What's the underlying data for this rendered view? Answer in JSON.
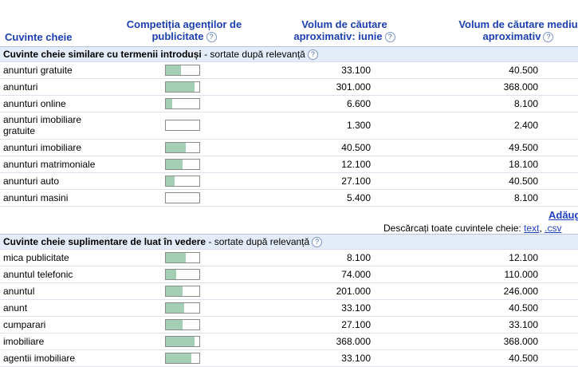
{
  "header": {
    "col_keywords": "Cuvinte cheie",
    "col_competition_l1": "Competiția agenților de",
    "col_competition_l2": "publicitate",
    "col_volume_l1": "Volum de căutare",
    "col_volume_l2": "aproximativ: iunie",
    "col_avg_l1": "Volum de căutare mediu",
    "col_avg_l2": "aproximativ",
    "help_glyph": "?"
  },
  "section1": {
    "title": "Cuvinte cheie similare cu termenii introduși",
    "subtitle": " - sortate după relevanță",
    "rows": [
      {
        "keyword": "anunturi gratuite",
        "competition": 0.45,
        "volume": "33.100",
        "avg": "40.500"
      },
      {
        "keyword": "anunturi",
        "competition": 0.85,
        "volume": "301.000",
        "avg": "368.000"
      },
      {
        "keyword": "anunturi online",
        "competition": 0.2,
        "volume": "6.600",
        "avg": "8.100"
      },
      {
        "keyword": "anunturi imobiliare gratuite",
        "competition": 0.0,
        "volume": "1.300",
        "avg": "2.400"
      },
      {
        "keyword": "anunturi imobiliare",
        "competition": 0.6,
        "volume": "40.500",
        "avg": "49.500"
      },
      {
        "keyword": "anunturi matrimoniale",
        "competition": 0.5,
        "volume": "12.100",
        "avg": "18.100"
      },
      {
        "keyword": "anunturi auto",
        "competition": 0.25,
        "volume": "27.100",
        "avg": "40.500"
      },
      {
        "keyword": "anunturi masini",
        "competition": 0.0,
        "volume": "5.400",
        "avg": "8.100"
      }
    ]
  },
  "add_link": "Adăug",
  "download": {
    "label": "Descărcați toate cuvintele cheie: ",
    "text_link": "text",
    "sep": ", ",
    "csv_link": ".csv"
  },
  "section2": {
    "title": "Cuvinte cheie suplimentare de luat în vedere",
    "subtitle": " - sortate după relevanță",
    "rows": [
      {
        "keyword": "mica publicitate",
        "competition": 0.6,
        "volume": "8.100",
        "avg": "12.100"
      },
      {
        "keyword": "anuntul telefonic",
        "competition": 0.3,
        "volume": "74.000",
        "avg": "110.000"
      },
      {
        "keyword": "anuntul",
        "competition": 0.5,
        "volume": "201.000",
        "avg": "246.000"
      },
      {
        "keyword": "anunt",
        "competition": 0.55,
        "volume": "33.100",
        "avg": "40.500"
      },
      {
        "keyword": "cumparari",
        "competition": 0.5,
        "volume": "27.100",
        "avg": "33.100"
      },
      {
        "keyword": "imobiliare",
        "competition": 0.85,
        "volume": "368.000",
        "avg": "368.000"
      },
      {
        "keyword": "agentii imobiliare",
        "competition": 0.75,
        "volume": "33.100",
        "avg": "40.500"
      }
    ]
  }
}
